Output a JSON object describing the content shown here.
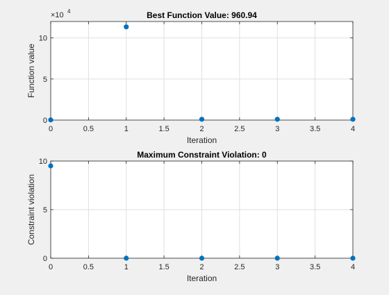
{
  "chart_data": [
    {
      "type": "scatter",
      "title": "Best Function Value: 960.94",
      "xlabel": "Iteration",
      "ylabel": "Function value",
      "y_exponent_base": "×10",
      "y_exponent_power": "4",
      "xlim": [
        0,
        4
      ],
      "ylim": [
        0,
        12
      ],
      "xticks": [
        0,
        0.5,
        1,
        1.5,
        2,
        2.5,
        3,
        3.5,
        4
      ],
      "xtick_labels": [
        "0",
        "0.5",
        "1",
        "1.5",
        "2",
        "2.5",
        "3",
        "3.5",
        "4"
      ],
      "yticks": [
        0,
        5,
        10
      ],
      "ytick_labels": [
        "0",
        "5",
        "10"
      ],
      "grid": true,
      "marker_color": "#0072bd",
      "x": [
        0,
        1,
        2,
        3,
        4
      ],
      "y": [
        0.02,
        11.35,
        0.1,
        0.1,
        0.1
      ]
    },
    {
      "type": "scatter",
      "title": "Maximum Constraint Violation: 0",
      "xlabel": "Iteration",
      "ylabel": "Constraint violation",
      "xlim": [
        0,
        4
      ],
      "ylim": [
        0,
        10
      ],
      "xticks": [
        0,
        0.5,
        1,
        1.5,
        2,
        2.5,
        3,
        3.5,
        4
      ],
      "xtick_labels": [
        "0",
        "0.5",
        "1",
        "1.5",
        "2",
        "2.5",
        "3",
        "3.5",
        "4"
      ],
      "yticks": [
        0,
        5,
        10
      ],
      "ytick_labels": [
        "0",
        "5",
        "10"
      ],
      "grid": true,
      "marker_color": "#0072bd",
      "x": [
        0,
        1,
        2,
        3,
        4
      ],
      "y": [
        9.5,
        0,
        0,
        0,
        0
      ]
    }
  ]
}
